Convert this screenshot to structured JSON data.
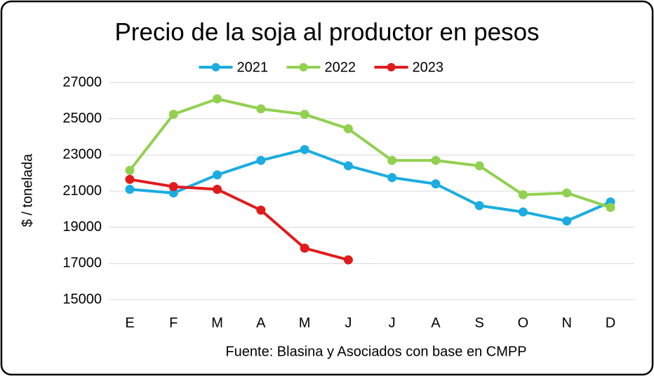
{
  "chart_data": {
    "type": "line",
    "title": "Precio de la soja al productor en pesos",
    "y_label": "$ / tonelada",
    "source": "Fuente: Blasina y Asociados con base en CMPP",
    "categories": [
      "E",
      "F",
      "M",
      "A",
      "M",
      "J",
      "J",
      "A",
      "S",
      "O",
      "N",
      "D"
    ],
    "series": [
      {
        "name": "2021",
        "color": "#1cace0",
        "values": [
          21100,
          20900,
          21900,
          22700,
          23300,
          22400,
          21750,
          21400,
          20200,
          19850,
          19350,
          20400
        ]
      },
      {
        "name": "2022",
        "color": "#92d050",
        "values": [
          22150,
          25250,
          26100,
          25550,
          25250,
          24450,
          22700,
          22700,
          22400,
          20800,
          20900,
          20100
        ]
      },
      {
        "name": "2023",
        "color": "#e11b1b",
        "values": [
          21650,
          21250,
          21100,
          19950,
          17850,
          17200,
          null,
          null,
          null,
          null,
          null,
          null
        ]
      }
    ],
    "ylim": [
      15000,
      27000
    ],
    "yticks": [
      15000,
      17000,
      19000,
      21000,
      23000,
      25000,
      27000
    ],
    "grid": true,
    "legend": "top"
  }
}
